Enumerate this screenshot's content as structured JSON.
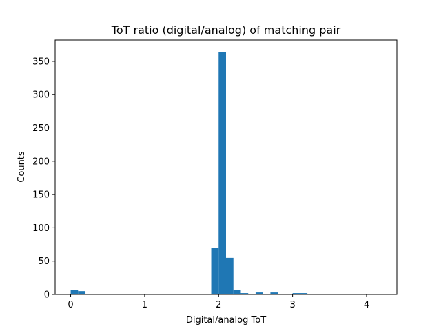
{
  "chart_data": {
    "type": "bar",
    "title": "ToT ratio (digital/analog) of matching pair",
    "xlabel": "Digital/analog ToT",
    "ylabel": "Counts",
    "xlim": [
      -0.21,
      4.41
    ],
    "ylim": [
      0,
      382
    ],
    "xticks": [
      "0",
      "1",
      "2",
      "3",
      "4"
    ],
    "yticks": [
      "0",
      "50",
      "100",
      "150",
      "200",
      "250",
      "300",
      "350"
    ],
    "bar_color": "#1f77b4",
    "bin_width": 0.1,
    "bins": [
      {
        "x": 0.0,
        "value": 7
      },
      {
        "x": 0.1,
        "value": 5
      },
      {
        "x": 0.2,
        "value": 1
      },
      {
        "x": 0.3,
        "value": 1
      },
      {
        "x": 1.9,
        "value": 70
      },
      {
        "x": 2.0,
        "value": 364
      },
      {
        "x": 2.1,
        "value": 55
      },
      {
        "x": 2.2,
        "value": 7
      },
      {
        "x": 2.3,
        "value": 2
      },
      {
        "x": 2.4,
        "value": 1
      },
      {
        "x": 2.5,
        "value": 3
      },
      {
        "x": 2.7,
        "value": 3
      },
      {
        "x": 3.0,
        "value": 2
      },
      {
        "x": 3.1,
        "value": 2
      },
      {
        "x": 4.2,
        "value": 1
      }
    ],
    "grid": false,
    "legend": false
  }
}
